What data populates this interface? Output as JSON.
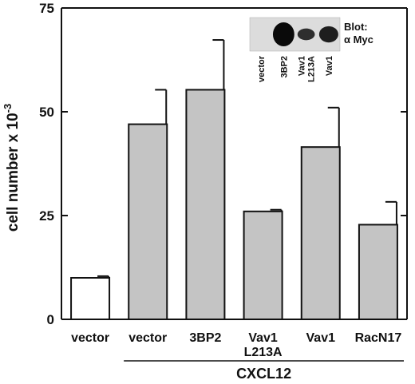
{
  "chart_data": {
    "type": "bar",
    "categories": [
      "vector",
      "vector",
      "3BP2",
      "Vav1 L213A",
      "Vav1",
      "RacN17"
    ],
    "category_lines": [
      [
        "vector"
      ],
      [
        "vector"
      ],
      [
        "3BP2"
      ],
      [
        "Vav1",
        "L213A"
      ],
      [
        "Vav1"
      ],
      [
        "RacN17"
      ]
    ],
    "values": [
      10,
      47,
      55.3,
      26,
      41.5,
      22.8
    ],
    "errors": [
      0.4,
      8.3,
      12,
      0.4,
      9.5,
      5.5
    ],
    "bar_colors": [
      "#ffffff",
      "#c4c4c4",
      "#c4c4c4",
      "#c4c4c4",
      "#c4c4c4",
      "#c4c4c4"
    ],
    "ylabel": "cell number x 10",
    "ylabel_exponent": "-3",
    "ylim": [
      0,
      75
    ],
    "yticks": [
      0,
      25,
      50,
      75
    ],
    "group_label": "CXCL12",
    "group_range": [
      1,
      5
    ],
    "grid": false,
    "inset_blot": {
      "title_lines": [
        "Blot:",
        "α Myc"
      ],
      "lanes": [
        {
          "label": "vector",
          "intensity": 0
        },
        {
          "label": "3BP2",
          "intensity": 1.0
        },
        {
          "label": "Vav1 L213A",
          "intensity": 0.55
        },
        {
          "label": "Vav1",
          "intensity": 0.75
        }
      ]
    }
  }
}
